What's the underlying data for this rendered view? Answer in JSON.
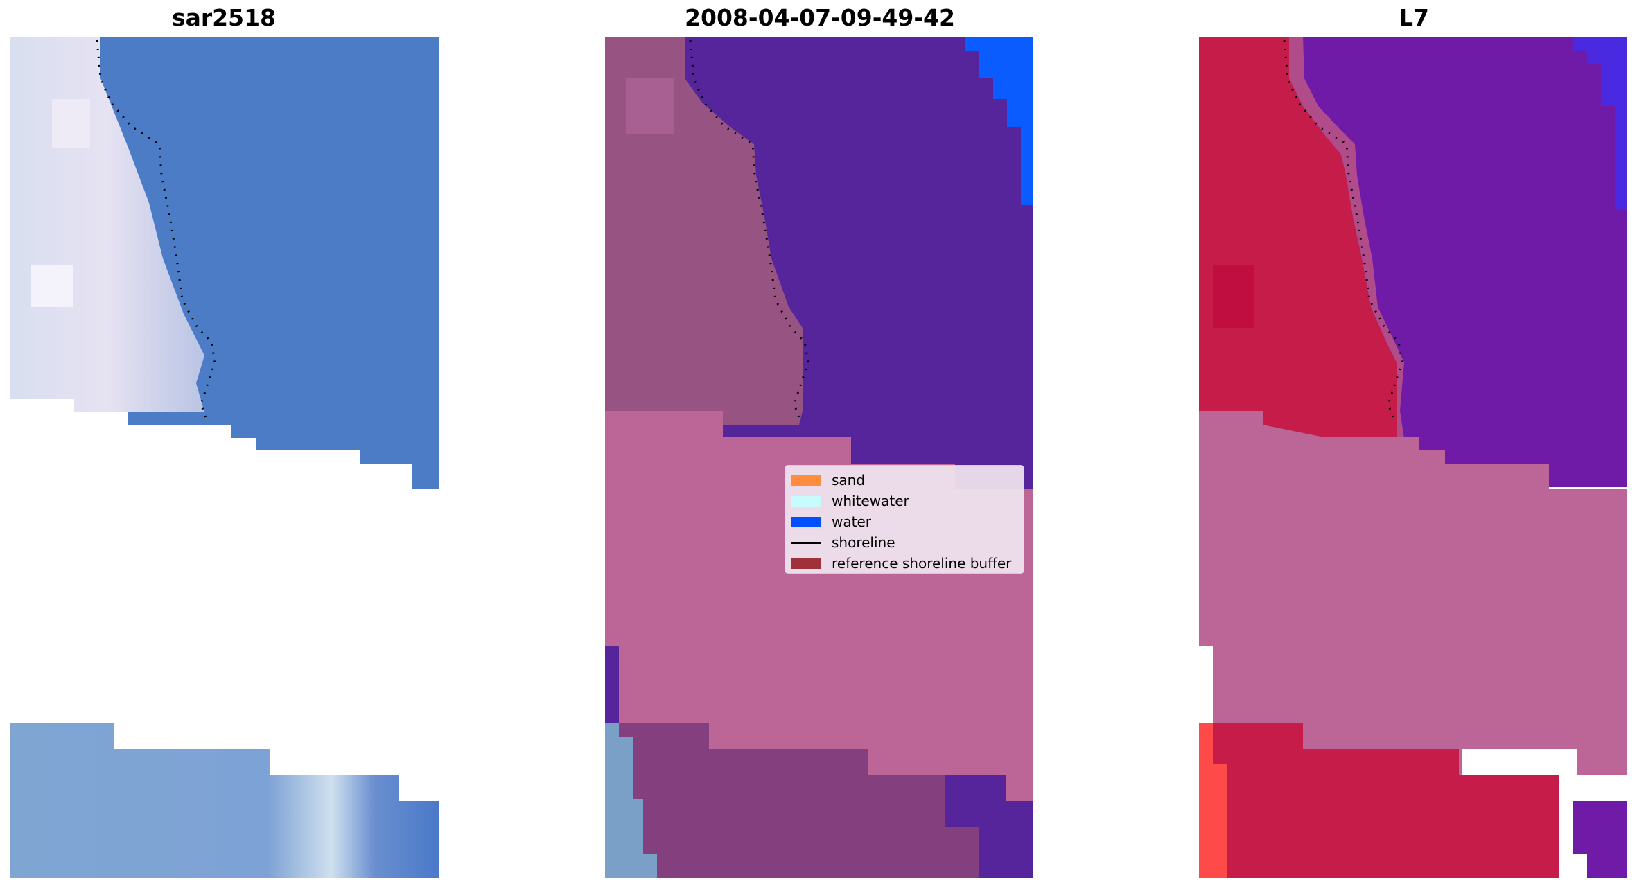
{
  "panels": [
    {
      "title": "sar2518"
    },
    {
      "title": "2008-04-07-09-49-42"
    },
    {
      "title": "L7"
    }
  ],
  "legend": {
    "items": [
      {
        "label": "sand",
        "color": "#ff8c3f",
        "type": "patch"
      },
      {
        "label": "whitewater",
        "color": "#c8fcfc",
        "type": "patch"
      },
      {
        "label": "water",
        "color": "#0050ff",
        "type": "patch"
      },
      {
        "label": "shoreline",
        "color": "#000000",
        "type": "line"
      },
      {
        "label": "reference shoreline buffer",
        "color": "#a0303a",
        "type": "patch"
      }
    ]
  },
  "colors": {
    "rgb_water": "#4d7cc6",
    "rgb_beach_light": "#d9dcee",
    "rgb_lower_band": "#7ea3d3",
    "class_water_dark": "#56259b",
    "class_water_bright": "#0a5cff",
    "class_buffer": "#bb6696",
    "class_land_overlay": "#975483",
    "class_lower_land": "#843f7e",
    "mndwi_land": "#c51c4a",
    "mndwi_water": "#6f1ba8",
    "mndwi_buffer": "#bb6696",
    "mndwi_bright_red": "#ff5050"
  }
}
